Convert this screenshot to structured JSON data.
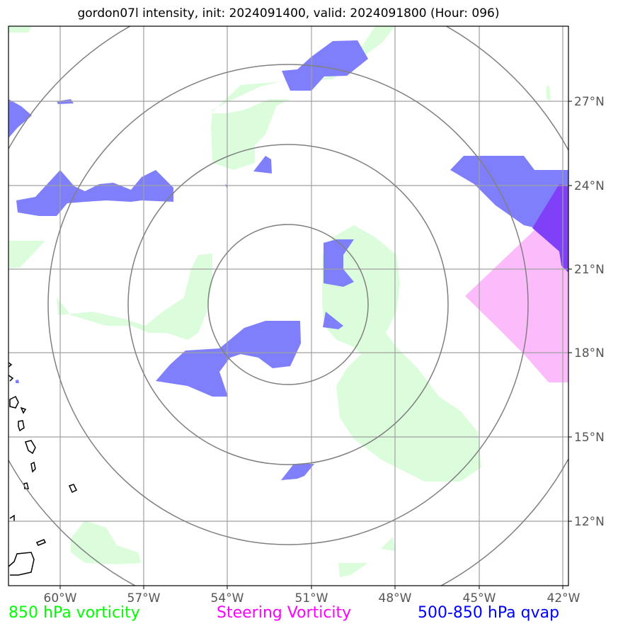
{
  "title": "gordon07l intensity, init: 2024091400, valid: 2024091800 (Hour: 096)",
  "lon_labels": [
    "60°W",
    "57°W",
    "54°W",
    "51°W",
    "48°W",
    "45°W",
    "42°W"
  ],
  "lat_labels": [
    "27°N",
    "24°N",
    "21°N",
    "18°N",
    "15°N",
    "12°N"
  ],
  "legend": [
    {
      "label": "850 hPa vorticity",
      "color": "#00ff00"
    },
    {
      "label": "Steering Vorticity",
      "color": "#ff00ff"
    },
    {
      "label": "500-850 hPa qvap",
      "color": "#0000ff"
    }
  ],
  "colors": {
    "vorticity_fill": "#dcfddc",
    "qvap_fill": "#7f7ffb",
    "qvap_dark_fill": "#8040f8",
    "steering_fill": "#fcbcfc",
    "gridline": "#a0a0a0",
    "range_ring": "#808080",
    "coastline": "#000000"
  },
  "map": {
    "extent_lon": [
      -61.8,
      -42.1
    ],
    "extent_lat": [
      9.7,
      29.5
    ],
    "center_lon": -51.2,
    "center_lat": 19.9,
    "range_rings_count": 4
  }
}
